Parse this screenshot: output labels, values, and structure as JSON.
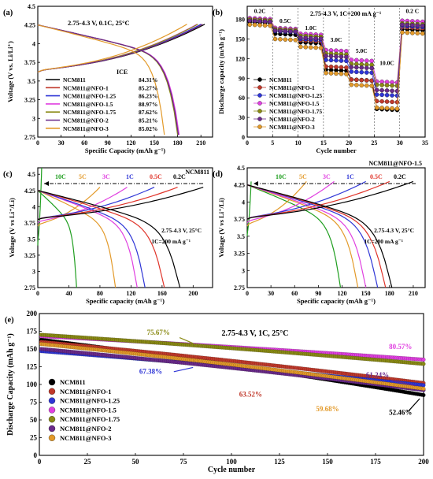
{
  "colors": {
    "NCM811": "#000000",
    "NCM811@NFO-1": "#c0392b",
    "NCM811@NFO-1.25": "#2f36d6",
    "NCM811@NFO-1.5": "#e040e0",
    "NCM811@NFO-1.75": "#8a8a14",
    "NCM811@NFO-2": "#6a2a8a",
    "NCM811@NFO-3": "#e39a2a",
    "rate_10C": "#1f9e1f",
    "rate_5C": "#e39a2a",
    "rate_3C": "#e040e0",
    "rate_1C": "#2f36d6",
    "rate_0_5C": "#e0342a",
    "rate_0_2C": "#000000"
  },
  "chart_data": [
    {
      "id": "a",
      "panel_label": "(a)",
      "type": "line",
      "title": "2.75-4.3 V, 0.1C, 25°C",
      "xlabel": "Specific Capacity (mAh g⁻¹)",
      "ylabel": "Voltage (V vs. Li/Li⁺)",
      "xlim": [
        0,
        225
      ],
      "ylim": [
        2.75,
        4.5
      ],
      "xticks": [
        0,
        30,
        60,
        90,
        120,
        150,
        180,
        210
      ],
      "yticks": [
        2.75,
        3.0,
        3.25,
        3.5,
        3.75,
        4.0,
        4.25,
        4.5
      ],
      "legend_title": "ICE",
      "legend_position": "bottom-left",
      "series": [
        {
          "name": "NCM811",
          "ice": "84.31%",
          "charge_cap": 215,
          "discharge_cap": 181
        },
        {
          "name": "NCM811@NFO-1",
          "ice": "85.27%",
          "charge_cap": 212,
          "discharge_cap": 181
        },
        {
          "name": "NCM811@NFO-1.25",
          "ice": "86.23%",
          "charge_cap": 210,
          "discharge_cap": 181
        },
        {
          "name": "NCM811@NFO-1.5",
          "ice": "88.97%",
          "charge_cap": 205,
          "discharge_cap": 182
        },
        {
          "name": "NCM811@NFO-1.75",
          "ice": "87.62%",
          "charge_cap": 206,
          "discharge_cap": 180
        },
        {
          "name": "NCM811@NFO-2",
          "ice": "85.21%",
          "charge_cap": 212,
          "discharge_cap": 181
        },
        {
          "name": "NCM811@NFO-3",
          "ice": "85.02%",
          "charge_cap": 192,
          "discharge_cap": 163
        }
      ]
    },
    {
      "id": "b",
      "panel_label": "(b)",
      "type": "scatter",
      "title": "2.75-4.3 V, 1C=200 mA g⁻¹",
      "xlabel": "Cycle number",
      "ylabel": "Discharge capacity (mAh g⁻¹)",
      "xlim": [
        0,
        35
      ],
      "ylim": [
        0,
        200
      ],
      "xticks": [
        0,
        5,
        10,
        15,
        20,
        25,
        30,
        35
      ],
      "yticks": [
        0,
        30,
        60,
        90,
        120,
        150,
        180
      ],
      "legend_position": "bottom-left",
      "rate_labels": [
        {
          "text": "0.2C",
          "x": 2.5,
          "y": 190
        },
        {
          "text": "0.5C",
          "x": 7.5,
          "y": 175
        },
        {
          "text": "1.0C",
          "x": 12.5,
          "y": 164
        },
        {
          "text": "3.0C",
          "x": 17.5,
          "y": 146
        },
        {
          "text": "5.0C",
          "x": 22.5,
          "y": 129
        },
        {
          "text": "10.0C",
          "x": 27.5,
          "y": 110
        },
        {
          "text": "0.2 C",
          "x": 32.5,
          "y": 190
        }
      ],
      "rate_segments": [
        "0.2C",
        "0.5C",
        "1.0C",
        "3.0C",
        "5.0C",
        "10.0C",
        "0.2C"
      ],
      "series": [
        {
          "name": "NCM811",
          "segment_values": [
            176,
            158,
            145,
            103,
            88,
            43,
            165
          ]
        },
        {
          "name": "NCM811@NFO-1",
          "segment_values": [
            178,
            162,
            148,
            108,
            88,
            55,
            168
          ]
        },
        {
          "name": "NCM811@NFO-1.25",
          "segment_values": [
            178,
            162,
            150,
            118,
            100,
            65,
            170
          ]
        },
        {
          "name": "NCM811@NFO-1.5",
          "segment_values": [
            182,
            167,
            158,
            133,
            118,
            85,
            178
          ]
        },
        {
          "name": "NCM811@NFO-1.75",
          "segment_values": [
            180,
            165,
            155,
            128,
            112,
            80,
            174
          ]
        },
        {
          "name": "NCM811@NFO-2",
          "segment_values": [
            178,
            163,
            152,
            124,
            107,
            72,
            172
          ]
        },
        {
          "name": "NCM811@NFO-3",
          "segment_values": [
            172,
            150,
            138,
            98,
            80,
            45,
            160
          ]
        }
      ]
    },
    {
      "id": "c",
      "panel_label": "(c)",
      "type": "line",
      "sample": "NCM811",
      "conditions": [
        "2.75-4.3 V, 25°C",
        "1C=200 mA g⁻¹"
      ],
      "xlabel": "Specific capacity (mAh g⁻¹)",
      "ylabel": "Voltage (V vs Li⁺/Li)",
      "xlim": [
        0,
        225
      ],
      "ylim": [
        2.75,
        4.6
      ],
      "xticks": [
        0,
        40,
        80,
        120,
        160,
        200
      ],
      "yticks": [
        2.75,
        3.0,
        3.25,
        3.5,
        3.75,
        4.0,
        4.25,
        4.5
      ],
      "series": [
        {
          "name": "10C",
          "charge_cap": 5,
          "discharge_cap": 50,
          "v_start": 3.4,
          "v_end_charge": 4.6
        },
        {
          "name": "5C",
          "charge_cap": 80,
          "discharge_cap": 100,
          "v_start": 3.7,
          "v_end_charge": 4.3
        },
        {
          "name": "3C",
          "charge_cap": 115,
          "discharge_cap": 128,
          "v_start": 3.75,
          "v_end_charge": 4.3
        },
        {
          "name": "1C",
          "charge_cap": 150,
          "discharge_cap": 138,
          "v_start": 3.8,
          "v_end_charge": 4.3
        },
        {
          "name": "0.5C",
          "charge_cap": 180,
          "discharge_cap": 163,
          "v_start": 3.8,
          "v_end_charge": 4.3
        },
        {
          "name": "0.2C",
          "charge_cap": 213,
          "discharge_cap": 183,
          "v_start": 3.8,
          "v_end_charge": 4.3
        }
      ]
    },
    {
      "id": "d",
      "panel_label": "(d)",
      "type": "line",
      "sample": "NCM811@NFO-1.5",
      "conditions": [
        "2.75-4.3 V, 25°C",
        "1C=200 mA g⁻¹"
      ],
      "xlabel": "Specific capacity (mAh g⁻¹)",
      "ylabel": "Voltage (V vs Li⁺/Li)",
      "xlim": [
        0,
        225
      ],
      "ylim": [
        2.75,
        4.5
      ],
      "xticks": [
        0,
        30,
        60,
        90,
        120,
        150,
        180,
        210
      ],
      "yticks": [
        2.75,
        3.0,
        3.25,
        3.5,
        3.75,
        4.0,
        4.25,
        4.5
      ],
      "series": [
        {
          "name": "10C",
          "charge_cap": 5,
          "discharge_cap": 118,
          "v_start": 3.5,
          "v_end_charge": 4.3
        },
        {
          "name": "5C",
          "charge_cap": 75,
          "discharge_cap": 140,
          "v_start": 3.65,
          "v_end_charge": 4.3
        },
        {
          "name": "3C",
          "charge_cap": 110,
          "discharge_cap": 150,
          "v_start": 3.7,
          "v_end_charge": 4.3
        },
        {
          "name": "1C",
          "charge_cap": 150,
          "discharge_cap": 165,
          "v_start": 3.75,
          "v_end_charge": 4.3
        },
        {
          "name": "0.5C",
          "charge_cap": 180,
          "discharge_cap": 175,
          "v_start": 3.75,
          "v_end_charge": 4.3
        },
        {
          "name": "0.2C",
          "charge_cap": 210,
          "discharge_cap": 183,
          "v_start": 3.75,
          "v_end_charge": 4.3
        }
      ]
    },
    {
      "id": "e",
      "panel_label": "(e)",
      "type": "scatter",
      "title": "2.75-4.3 V, 1C, 25°C",
      "xlabel": "Cycle number",
      "ylabel": "Discharge Capacity (mAh g⁻¹)",
      "xlim": [
        0,
        200
      ],
      "ylim": [
        0,
        200
      ],
      "xticks": [
        0,
        25,
        50,
        75,
        100,
        125,
        150,
        175,
        200
      ],
      "yticks": [
        0,
        25,
        50,
        75,
        100,
        125,
        150,
        175,
        200
      ],
      "legend_position": "bottom-left",
      "series": [
        {
          "name": "NCM811",
          "start": 163,
          "end": 85,
          "retention": "52.46%"
        },
        {
          "name": "NCM811@NFO-1",
          "start": 160,
          "end": 102,
          "retention": "63.52%"
        },
        {
          "name": "NCM811@NFO-1.25",
          "start": 147,
          "end": 99,
          "retention": "67.38%"
        },
        {
          "name": "NCM811@NFO-1.5",
          "start": 168,
          "end": 135,
          "retention": "80.57%"
        },
        {
          "name": "NCM811@NFO-1.75",
          "start": 170,
          "end": 129,
          "retention": "75.67%"
        },
        {
          "name": "NCM811@NFO-2",
          "start": 150,
          "end": 92,
          "retention": "61.24%"
        },
        {
          "name": "NCM811@NFO-3",
          "start": 157,
          "end": 94,
          "retention": "59.68%"
        }
      ],
      "annotations": [
        {
          "text": "75.67%",
          "x": 62,
          "y": 170,
          "series": "NCM811@NFO-1.75"
        },
        {
          "text": "80.57%",
          "x": 188,
          "y": 150,
          "series": "NCM811@NFO-1.5"
        },
        {
          "text": "67.38%",
          "x": 58,
          "y": 115,
          "series": "NCM811@NFO-1.25"
        },
        {
          "text": "63.52%",
          "x": 110,
          "y": 83,
          "series": "NCM811@NFO-1"
        },
        {
          "text": "61.24%",
          "x": 176,
          "y": 110,
          "series": "NCM811@NFO-2"
        },
        {
          "text": "59.68%",
          "x": 150,
          "y": 62,
          "series": "NCM811@NFO-3"
        },
        {
          "text": "52.46%",
          "x": 188,
          "y": 57,
          "series": "NCM811"
        }
      ]
    }
  ]
}
